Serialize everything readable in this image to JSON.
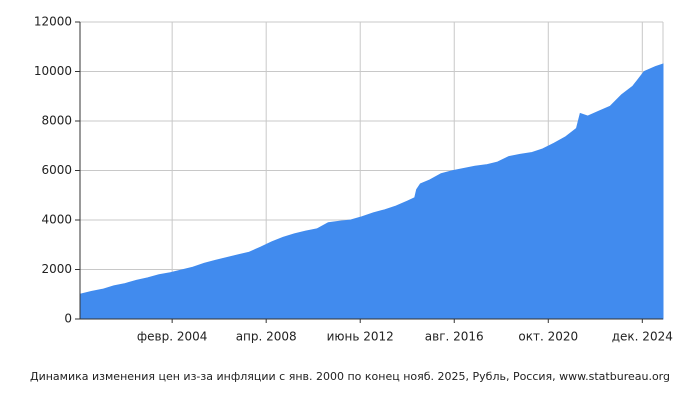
{
  "chart_data": {
    "type": "area",
    "title": "Динамика изменения цен из-за инфляции с янв. 2000 по конец нояб. 2025, Рубль, Россия, www.statbureau.org",
    "x": [
      "2000-01",
      "2000-07",
      "2001-01",
      "2001-07",
      "2002-01",
      "2002-07",
      "2003-01",
      "2003-07",
      "2004-01",
      "2004-07",
      "2005-01",
      "2005-07",
      "2006-01",
      "2006-07",
      "2007-01",
      "2007-07",
      "2008-01",
      "2008-07",
      "2009-01",
      "2009-07",
      "2010-01",
      "2010-07",
      "2011-01",
      "2011-07",
      "2012-01",
      "2012-07",
      "2013-01",
      "2013-07",
      "2014-01",
      "2014-07",
      "2014-11",
      "2014-12",
      "2015-02",
      "2015-07",
      "2016-01",
      "2016-07",
      "2017-01",
      "2017-07",
      "2018-01",
      "2018-07",
      "2019-01",
      "2019-07",
      "2020-01",
      "2020-07",
      "2021-01",
      "2021-07",
      "2022-01",
      "2022-03",
      "2022-07",
      "2023-01",
      "2023-07",
      "2024-01",
      "2024-07",
      "2025-01",
      "2025-07",
      "2025-11"
    ],
    "series": [
      {
        "name": "Рубль",
        "color": "#418bee",
        "values": [
          1000,
          1110,
          1200,
          1340,
          1430,
          1560,
          1660,
          1790,
          1870,
          1980,
          2090,
          2250,
          2370,
          2480,
          2590,
          2700,
          2900,
          3120,
          3300,
          3440,
          3550,
          3640,
          3890,
          3950,
          4000,
          4130,
          4290,
          4410,
          4560,
          4760,
          4900,
          5230,
          5460,
          5620,
          5870,
          5990,
          6080,
          6170,
          6230,
          6340,
          6560,
          6650,
          6720,
          6870,
          7100,
          7350,
          7700,
          8300,
          8200,
          8400,
          8600,
          9060,
          9410,
          10000,
          10200,
          10300
        ]
      }
    ],
    "xlim": [
      "2000-01",
      "2025-11"
    ],
    "xticks": [
      {
        "value": "2004-02",
        "label": "февр. 2004"
      },
      {
        "value": "2008-04",
        "label": "апр. 2008"
      },
      {
        "value": "2012-06",
        "label": "июнь 2012"
      },
      {
        "value": "2016-08",
        "label": "авг. 2016"
      },
      {
        "value": "2020-10",
        "label": "окт. 2020"
      },
      {
        "value": "2024-12",
        "label": "дек. 2024"
      }
    ],
    "ylim": [
      0,
      12000
    ],
    "yticks": [
      0,
      2000,
      4000,
      6000,
      8000,
      10000,
      12000
    ],
    "grid": true
  }
}
